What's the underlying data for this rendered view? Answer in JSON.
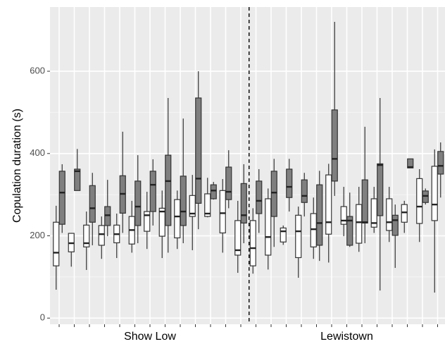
{
  "chart_data": {
    "type": "box",
    "y_label": "Copulation duration (s)",
    "x_labels": [
      "Show Low",
      "Lewistown"
    ],
    "categories": [
      null,
      null,
      null,
      null,
      null,
      null,
      null,
      null,
      null,
      null,
      null,
      null,
      null,
      null,
      null,
      null,
      null,
      null,
      null,
      null,
      null,
      null,
      null,
      null,
      null,
      null
    ],
    "ylim": [
      -15,
      756
    ],
    "yticks": [
      0,
      200,
      400,
      600
    ],
    "y_minor_ticks": [
      100,
      300,
      500
    ],
    "grid": true,
    "series": [
      {
        "color": "#ffffff",
        "min": [
          69,
          125,
          117,
          144,
          146,
          159,
          168,
          146,
          168,
          165,
          245,
          159,
          110,
          108,
          118,
          178,
          98,
          144,
          135,
          199,
          161,
          207,
          185,
          207,
          185,
          62
        ],
        "q1": [
          127,
          161,
          173,
          177,
          183,
          180,
          211,
          199,
          195,
          247,
          247,
          207,
          153,
          127,
          153,
          185,
          147,
          173,
          204,
          228,
          182,
          221,
          213,
          233,
          230,
          237
        ],
        "median": [
          159,
          182,
          182,
          204,
          204,
          214,
          250,
          259,
          247,
          254,
          254,
          255,
          165,
          170,
          197,
          211,
          211,
          216,
          233,
          237,
          233,
          231,
          233,
          257,
          271,
          276
        ],
        "q3": [
          233,
          206,
          226,
          225,
          226,
          247,
          259,
          267,
          288,
          298,
          302,
          310,
          237,
          237,
          290,
          219,
          250,
          254,
          348,
          271,
          276,
          290,
          290,
          276,
          339,
          369
        ],
        "max": [
          273,
          207,
          259,
          247,
          254,
          285,
          307,
          310,
          310,
          348,
          341,
          338,
          285,
          267,
          315,
          225,
          271,
          293,
          375,
          319,
          319,
          319,
          319,
          285,
          362,
          410
        ]
      },
      {
        "color": "#7f7f7f",
        "min": [
          207,
          310,
          177,
          199,
          207,
          182,
          225,
          159,
          182,
          216,
          288,
          267,
          182,
          207,
          173,
          259,
          247,
          139,
          297,
          173,
          182,
          67,
          122,
          365,
          276,
          293
        ],
        "q1": [
          228,
          310,
          233,
          225,
          255,
          225,
          259,
          225,
          225,
          279,
          290,
          288,
          231,
          254,
          247,
          293,
          281,
          177,
          333,
          177,
          231,
          249,
          201,
          365,
          281,
          350
        ],
        "median": [
          305,
          357,
          267,
          250,
          302,
          271,
          324,
          333,
          259,
          339,
          310,
          307,
          250,
          285,
          305,
          319,
          297,
          231,
          387,
          237,
          233,
          372,
          238,
          367,
          297,
          370
        ],
        "q3": [
          357,
          362,
          322,
          271,
          346,
          333,
          357,
          396,
          345,
          535,
          324,
          367,
          327,
          333,
          357,
          362,
          336,
          324,
          506,
          247,
          336,
          375,
          250,
          387,
          309,
          405
        ],
        "max": [
          374,
          411,
          353,
          336,
          453,
          396,
          386,
          535,
          485,
          600,
          331,
          408,
          374,
          362,
          387,
          387,
          353,
          358,
          720,
          305,
          465,
          535,
          276,
          387,
          315,
          427
        ]
      }
    ]
  }
}
